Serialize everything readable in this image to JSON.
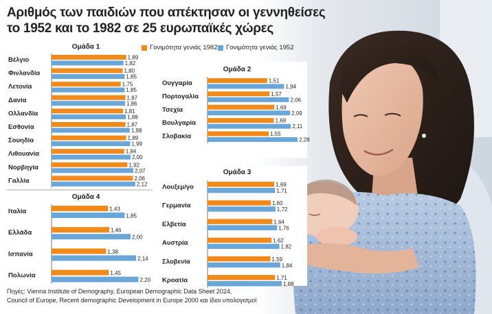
{
  "title_line1": "Αριθμός των παιδιών που απέκτησαν οι γεννηθείσες",
  "title_line2": "το 1952 και το 1982 σε 25 ευρωπαϊκές χώρες",
  "colors": {
    "s1982": "#f08a1c",
    "s1952": "#6aa6d8"
  },
  "chart_data": {
    "type": "bar",
    "orientation": "horizontal",
    "legend": [
      "Γονιμότητα γενιάς 1982",
      "Γονιμότητα γενιάς 1952"
    ],
    "groups": [
      {
        "name": "Ομάδα 1",
        "categories": [
          "Βέλγιο",
          "Φινλανδία",
          "Λετονία",
          "Δανία",
          "Ολλανδία",
          "Εσθονία",
          "Σουηδία",
          "Λιθουανία",
          "Νορβηγία",
          "Γαλλία"
        ],
        "series": [
          {
            "name": "Γονιμότητα γενιάς 1982",
            "values": [
              "1,89",
              "1,80",
              "1,75",
              "1,87",
              "1,81",
              "1,87",
              "1,89",
              "1,84",
              "1,92",
              "2,06"
            ]
          },
          {
            "name": "Γονιμότητα γενιάς 1952",
            "values": [
              "1,82",
              "1,85",
              "1,85",
              "1,86",
              "1,88",
              "1,98",
              "1,99",
              "2,00",
              "2,07",
              "2,12"
            ]
          }
        ]
      },
      {
        "name": "Ομάδα 2",
        "categories": [
          "Ουγγαρία",
          "Πορτογαλία",
          "Τσεχία",
          "Βουλγαρία",
          "Σλοβακία"
        ],
        "series": [
          {
            "name": "Γονιμότητα γενιάς 1982",
            "values": [
              "1,51",
              "1,57",
              "1,69",
              "1,68",
              "1,55"
            ]
          },
          {
            "name": "Γονιμότητα γενιάς 1952",
            "values": [
              "1,94",
              "2,06",
              "2,09",
              "2,11",
              "2,28"
            ]
          }
        ]
      },
      {
        "name": "Ομάδα 3",
        "categories": [
          "Λουξεμ/γο",
          "Γερμανία",
          "Ελβετία",
          "Αυστρία",
          "Σλοβενία",
          "Κροατία"
        ],
        "series": [
          {
            "name": "Γονιμότητα γενιάς 1982",
            "values": [
              "1,69",
              "1,60",
              "1,64",
              "1,62",
              "1,59",
              "1,71"
            ]
          },
          {
            "name": "Γονιμότητα γενιάς 1952",
            "values": [
              "1,71",
              "1,72",
              "1,76",
              "1,82",
              "1,84",
              "1,88"
            ]
          }
        ]
      },
      {
        "name": "Ομάδα 4",
        "categories": [
          "Ιταλία",
          "Ελλάδα",
          "Ισπανία",
          "Πολωνία"
        ],
        "series": [
          {
            "name": "Γονιμότητα γενιάς 1982",
            "values": [
              "1,43",
              "1,46",
              "1,38",
              "1,45"
            ]
          },
          {
            "name": "Γονιμότητα γενιάς 1952",
            "values": [
              "1,85",
              "2,00",
              "2,14",
              "2,20"
            ]
          }
        ]
      }
    ]
  },
  "source_line1": "Πηγές: Vienna Institute of Demography, European Demographic Data Sheet 2024,",
  "source_line2": "Council of Europe, Recent demographic Development in Europe 2000 και ίδιοι υπολογισμοί"
}
